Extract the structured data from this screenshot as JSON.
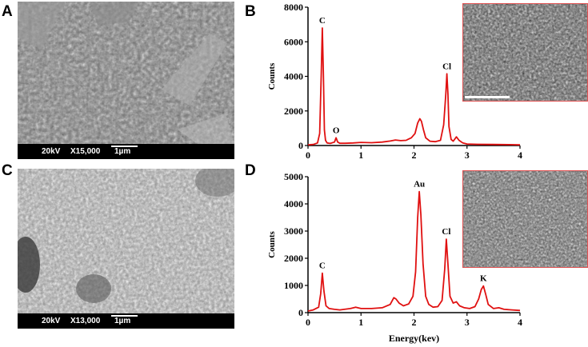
{
  "panels": {
    "A": {
      "letter": "A",
      "voltage": "20kV",
      "magnification": "X15,000",
      "scale": "1µm"
    },
    "B": {
      "letter": "B"
    },
    "C": {
      "letter": "C",
      "voltage": "20kV",
      "magnification": "X13,000",
      "scale": "1µm"
    },
    "D": {
      "letter": "D"
    }
  },
  "colors": {
    "line": "#e01010",
    "inset_border": "#e05050"
  },
  "chart_data": [
    {
      "type": "line",
      "panel": "B",
      "title": "",
      "xlabel": "",
      "ylabel": "Counts",
      "xlim": [
        0,
        4
      ],
      "ylim": [
        0,
        8000
      ],
      "xticks": [
        0,
        1,
        2,
        3,
        4
      ],
      "yticks": [
        0,
        2000,
        4000,
        6000,
        8000
      ],
      "series": [
        {
          "x": [
            0,
            0.1,
            0.18,
            0.22,
            0.25,
            0.27,
            0.29,
            0.31,
            0.33,
            0.36,
            0.42,
            0.5,
            0.53,
            0.56,
            0.6,
            0.7,
            0.85,
            1.0,
            1.2,
            1.4,
            1.55,
            1.65,
            1.75,
            1.85,
            1.95,
            2.02,
            2.07,
            2.11,
            2.14,
            2.18,
            2.22,
            2.3,
            2.4,
            2.5,
            2.56,
            2.6,
            2.62,
            2.64,
            2.66,
            2.7,
            2.74,
            2.8,
            2.85,
            2.92,
            3.0,
            3.2,
            3.5,
            3.8,
            4.0
          ],
          "y": [
            40,
            60,
            150,
            700,
            4200,
            6800,
            4200,
            900,
            300,
            150,
            120,
            200,
            450,
            200,
            130,
            130,
            150,
            180,
            160,
            200,
            260,
            320,
            280,
            300,
            450,
            700,
            1300,
            1550,
            1400,
            900,
            450,
            250,
            220,
            300,
            1200,
            3000,
            4150,
            3000,
            1100,
            350,
            250,
            500,
            300,
            150,
            90,
            70,
            60,
            50,
            40
          ]
        }
      ],
      "annotations": [
        {
          "text": "C",
          "x": 0.27,
          "y": 6800
        },
        {
          "text": "O",
          "x": 0.53,
          "y": 450
        },
        {
          "text": "Cl",
          "x": 2.62,
          "y": 4150
        }
      ]
    },
    {
      "type": "line",
      "panel": "D",
      "title": "",
      "xlabel": "Energy(kev)",
      "ylabel": "Counts",
      "xlim": [
        0,
        4
      ],
      "ylim": [
        0,
        5000
      ],
      "xticks": [
        0,
        1,
        2,
        3,
        4
      ],
      "yticks": [
        0,
        1000,
        2000,
        3000,
        4000,
        5000
      ],
      "series": [
        {
          "x": [
            0,
            0.1,
            0.2,
            0.24,
            0.27,
            0.3,
            0.34,
            0.4,
            0.5,
            0.6,
            0.8,
            0.9,
            1.0,
            1.2,
            1.4,
            1.55,
            1.62,
            1.66,
            1.72,
            1.8,
            1.9,
            1.98,
            2.03,
            2.07,
            2.1,
            2.13,
            2.17,
            2.22,
            2.28,
            2.36,
            2.45,
            2.53,
            2.58,
            2.61,
            2.64,
            2.68,
            2.74,
            2.8,
            2.86,
            2.95,
            3.05,
            3.15,
            3.22,
            3.27,
            3.31,
            3.35,
            3.4,
            3.5,
            3.6,
            3.7,
            3.85,
            4.0
          ],
          "y": [
            60,
            100,
            200,
            700,
            1450,
            800,
            250,
            150,
            120,
            100,
            150,
            200,
            150,
            150,
            180,
            300,
            550,
            500,
            350,
            250,
            320,
            600,
            1500,
            3500,
            4450,
            3600,
            1800,
            600,
            300,
            200,
            220,
            450,
            1600,
            2700,
            1800,
            600,
            350,
            400,
            250,
            180,
            150,
            220,
            500,
            850,
            980,
            700,
            300,
            150,
            180,
            120,
            100,
            80
          ]
        }
      ],
      "annotations": [
        {
          "text": "C",
          "x": 0.27,
          "y": 1450
        },
        {
          "text": "Au",
          "x": 2.1,
          "y": 4450
        },
        {
          "text": "Cl",
          "x": 2.61,
          "y": 2700
        },
        {
          "text": "K",
          "x": 3.31,
          "y": 980
        }
      ]
    }
  ]
}
